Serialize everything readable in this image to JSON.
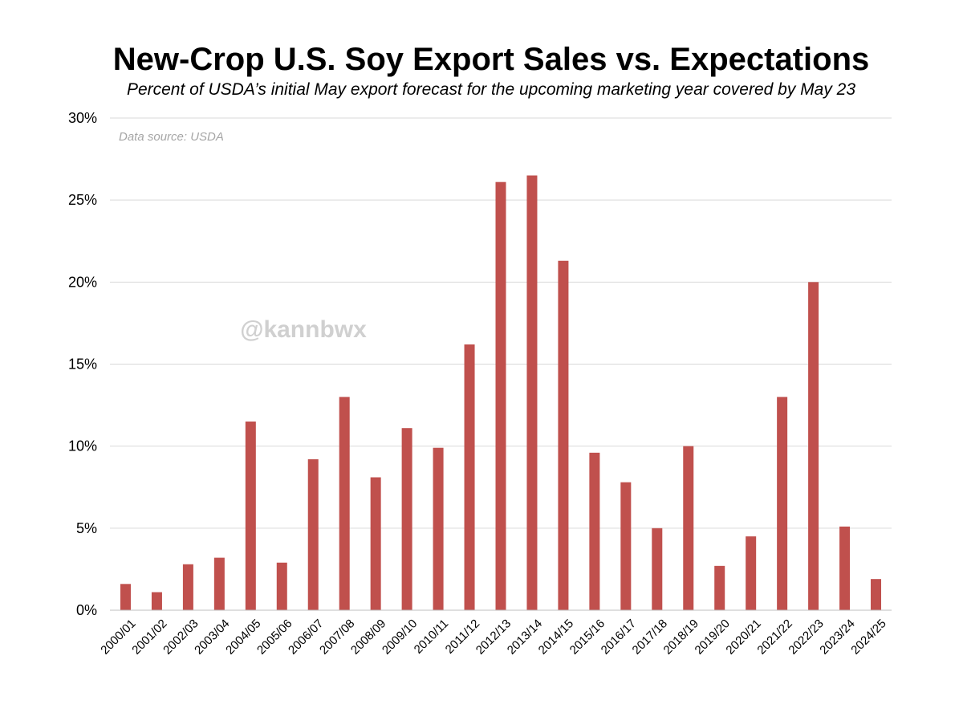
{
  "chart_data": {
    "type": "bar",
    "title": "New-Crop U.S. Soy Export Sales vs. Expectations",
    "subtitle": "Percent of USDA’s initial May export forecast for the upcoming marketing year covered by May 23",
    "source_note": "Data source: USDA",
    "watermark": "@kannbwx",
    "xlabel": "",
    "ylabel": "",
    "ylim": [
      0,
      30
    ],
    "y_ticks": [
      0,
      5,
      10,
      15,
      20,
      25,
      30
    ],
    "y_tick_labels": [
      "0%",
      "5%",
      "10%",
      "15%",
      "20%",
      "25%",
      "30%"
    ],
    "grid": true,
    "legend": "none",
    "bar_color": "#c0504d",
    "categories": [
      "2000/01",
      "2001/02",
      "2002/03",
      "2003/04",
      "2004/05",
      "2005/06",
      "2006/07",
      "2007/08",
      "2008/09",
      "2009/10",
      "2010/11",
      "2011/12",
      "2012/13",
      "2013/14",
      "2014/15",
      "2015/16",
      "2016/17",
      "2017/18",
      "2018/19",
      "2019/20",
      "2020/21",
      "2021/22",
      "2022/23",
      "2023/24",
      "2024/25"
    ],
    "values": [
      1.6,
      1.1,
      2.8,
      3.2,
      11.5,
      2.9,
      9.2,
      13.0,
      8.1,
      11.1,
      9.9,
      16.2,
      26.1,
      26.5,
      21.3,
      9.6,
      7.8,
      5.0,
      10.0,
      2.7,
      4.5,
      13.0,
      20.0,
      5.1,
      1.9
    ]
  }
}
